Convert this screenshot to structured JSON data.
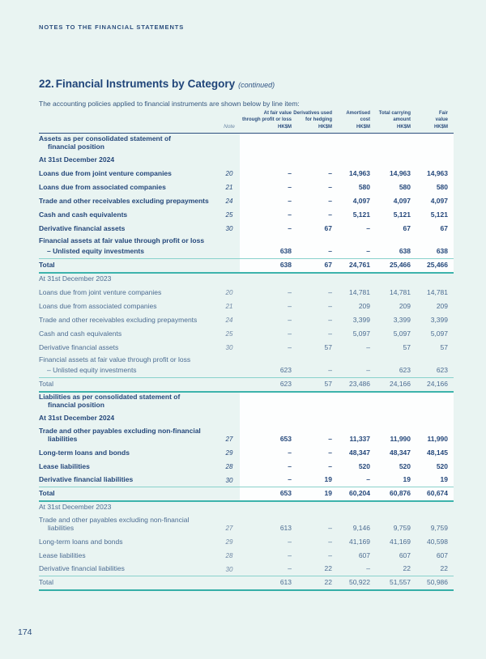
{
  "page": {
    "running_header": "NOTES TO THE FINANCIAL STATEMENTS",
    "page_number": "174"
  },
  "section": {
    "number": "22.",
    "title": "Financial Instruments by Category",
    "suffix": "(continued)",
    "intro": "The accounting policies applied to financial instruments are shown below by line item:"
  },
  "colors": {
    "page_bg": "#e9f4f2",
    "band_bg": "#fdfefe",
    "navy_text": "#24477a",
    "teal_rule_light": "#8ad2cc",
    "teal_rule_thick": "#3db3ac",
    "header_rule_navy": "#2c4e7e"
  },
  "table": {
    "note_label": "Note",
    "cols": [
      {
        "l1": "At fair value",
        "l2": "through profit or loss",
        "unit": "HK$M"
      },
      {
        "l1": "Derivatives used",
        "l2": "for hedging",
        "unit": "HK$M"
      },
      {
        "l1": "Amortised",
        "l2": "cost",
        "unit": "HK$M"
      },
      {
        "l1": "Total carrying",
        "l2": "amount",
        "unit": "HK$M"
      },
      {
        "l1": "Fair",
        "l2": "value",
        "unit": "HK$M"
      }
    ],
    "rows": [
      {
        "kind": "section",
        "band": true,
        "bold": true,
        "label": "Assets as per consolidated statement of",
        "label2": "financial position"
      },
      {
        "kind": "date",
        "band": true,
        "bold": true,
        "label": "At 31st December 2024"
      },
      {
        "kind": "data",
        "band": true,
        "bold": true,
        "label": "Loans due from joint venture companies",
        "note": "20",
        "v": [
          "–",
          "–",
          "14,963",
          "14,963",
          "14,963"
        ]
      },
      {
        "kind": "data",
        "band": true,
        "bold": true,
        "label": "Loans due from associated companies",
        "note": "21",
        "v": [
          "–",
          "–",
          "580",
          "580",
          "580"
        ]
      },
      {
        "kind": "data",
        "band": true,
        "bold": true,
        "label": "Trade and other receivables excluding prepayments",
        "note": "24",
        "v": [
          "–",
          "–",
          "4,097",
          "4,097",
          "4,097"
        ]
      },
      {
        "kind": "data",
        "band": true,
        "bold": true,
        "label": "Cash and cash equivalents",
        "note": "25",
        "v": [
          "–",
          "–",
          "5,121",
          "5,121",
          "5,121"
        ]
      },
      {
        "kind": "data",
        "band": true,
        "bold": true,
        "label": "Derivative financial assets",
        "note": "30",
        "v": [
          "–",
          "67",
          "–",
          "67",
          "67"
        ]
      },
      {
        "kind": "group",
        "band": true,
        "bold": true,
        "label": "Financial assets at fair value through profit or loss"
      },
      {
        "kind": "sub",
        "band": true,
        "bold": true,
        "label": "– Unlisted equity investments",
        "v": [
          "638",
          "–",
          "–",
          "638",
          "638"
        ]
      },
      {
        "kind": "total",
        "band": true,
        "bold": true,
        "end": true,
        "label": "Total",
        "v": [
          "638",
          "67",
          "24,761",
          "25,466",
          "25,466"
        ]
      },
      {
        "kind": "date",
        "band": false,
        "bold": false,
        "label": "At 31st December 2023"
      },
      {
        "kind": "data",
        "band": false,
        "bold": false,
        "label": "Loans due from joint venture companies",
        "note": "20",
        "v": [
          "–",
          "–",
          "14,781",
          "14,781",
          "14,781"
        ]
      },
      {
        "kind": "data",
        "band": false,
        "bold": false,
        "label": "Loans due from associated companies",
        "note": "21",
        "v": [
          "–",
          "–",
          "209",
          "209",
          "209"
        ]
      },
      {
        "kind": "data",
        "band": false,
        "bold": false,
        "label": "Trade and other receivables excluding prepayments",
        "note": "24",
        "v": [
          "–",
          "–",
          "3,399",
          "3,399",
          "3,399"
        ]
      },
      {
        "kind": "data",
        "band": false,
        "bold": false,
        "label": "Cash and cash equivalents",
        "note": "25",
        "v": [
          "–",
          "–",
          "5,097",
          "5,097",
          "5,097"
        ]
      },
      {
        "kind": "data",
        "band": false,
        "bold": false,
        "label": "Derivative financial assets",
        "note": "30",
        "v": [
          "–",
          "57",
          "–",
          "57",
          "57"
        ]
      },
      {
        "kind": "group",
        "band": false,
        "bold": false,
        "label": "Financial assets at fair value through profit or loss"
      },
      {
        "kind": "sub",
        "band": false,
        "bold": false,
        "label": "– Unlisted equity investments",
        "v": [
          "623",
          "–",
          "–",
          "623",
          "623"
        ]
      },
      {
        "kind": "total",
        "band": false,
        "bold": false,
        "end": true,
        "label": "Total",
        "v": [
          "623",
          "57",
          "23,486",
          "24,166",
          "24,166"
        ]
      },
      {
        "kind": "section",
        "band": true,
        "bold": true,
        "label": "Liabilities as per consolidated statement of",
        "label2": "financial position"
      },
      {
        "kind": "date",
        "band": true,
        "bold": true,
        "label": "At 31st December 2024"
      },
      {
        "kind": "data twoline",
        "band": true,
        "bold": true,
        "label": "Trade and other payables excluding non-financial",
        "label2": "liabilities",
        "note": "27",
        "v": [
          "653",
          "–",
          "11,337",
          "11,990",
          "11,990"
        ]
      },
      {
        "kind": "data",
        "band": true,
        "bold": true,
        "label": "Long-term loans and bonds",
        "note": "29",
        "v": [
          "–",
          "–",
          "48,347",
          "48,347",
          "48,145"
        ]
      },
      {
        "kind": "data",
        "band": true,
        "bold": true,
        "label": "Lease liabilities",
        "note": "28",
        "v": [
          "–",
          "–",
          "520",
          "520",
          "520"
        ]
      },
      {
        "kind": "data",
        "band": true,
        "bold": true,
        "label": "Derivative financial liabilities",
        "note": "30",
        "v": [
          "–",
          "19",
          "–",
          "19",
          "19"
        ]
      },
      {
        "kind": "total",
        "band": true,
        "bold": true,
        "end": true,
        "label": "Total",
        "v": [
          "653",
          "19",
          "60,204",
          "60,876",
          "60,674"
        ]
      },
      {
        "kind": "date",
        "band": false,
        "bold": false,
        "label": "At 31st December 2023"
      },
      {
        "kind": "data twoline",
        "band": false,
        "bold": false,
        "label": "Trade and other payables excluding non-financial",
        "label2": "liabilities",
        "note": "27",
        "v": [
          "613",
          "–",
          "9,146",
          "9,759",
          "9,759"
        ]
      },
      {
        "kind": "data",
        "band": false,
        "bold": false,
        "label": "Long-term loans and bonds",
        "note": "29",
        "v": [
          "–",
          "–",
          "41,169",
          "41,169",
          "40,598"
        ]
      },
      {
        "kind": "data",
        "band": false,
        "bold": false,
        "label": "Lease liabilities",
        "note": "28",
        "v": [
          "–",
          "–",
          "607",
          "607",
          "607"
        ]
      },
      {
        "kind": "data",
        "band": false,
        "bold": false,
        "label": "Derivative financial liabilities",
        "note": "30",
        "v": [
          "–",
          "22",
          "–",
          "22",
          "22"
        ]
      },
      {
        "kind": "total",
        "band": false,
        "bold": false,
        "last": true,
        "label": "Total",
        "v": [
          "613",
          "22",
          "50,922",
          "51,557",
          "50,986"
        ]
      }
    ]
  }
}
